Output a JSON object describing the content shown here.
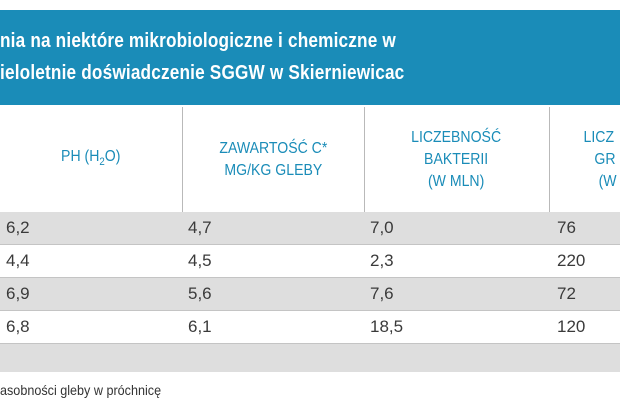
{
  "title": {
    "line1": "nia na niektóre mikrobiologiczne i chemiczne w",
    "line2": "ieloletnie doświadczenie SGGW w Skierniewicac"
  },
  "table": {
    "headers": [
      {
        "lines": [
          "PH (H",
          "2",
          "O)"
        ]
      },
      {
        "lines": [
          "ZAWARTOŚĆ C*",
          "MG/KG GLEBY"
        ]
      },
      {
        "lines": [
          "LICZEBNOŚĆ",
          "BAKTERII",
          "(W MLN)"
        ]
      },
      {
        "lines": [
          "LICZ",
          "GR",
          "(W"
        ]
      }
    ],
    "rows": [
      [
        "6,2",
        "4,7",
        "7,0",
        "76"
      ],
      [
        "4,4",
        "4,5",
        "2,3",
        "220"
      ],
      [
        "6,9",
        "5,6",
        "7,6",
        "72"
      ],
      [
        "6,8",
        "6,1",
        "18,5",
        "120"
      ]
    ]
  },
  "footnote": "asobności gleby w próchnicę",
  "colors": {
    "accent": "#1a8cb8",
    "row_stripe": "#dedede"
  }
}
